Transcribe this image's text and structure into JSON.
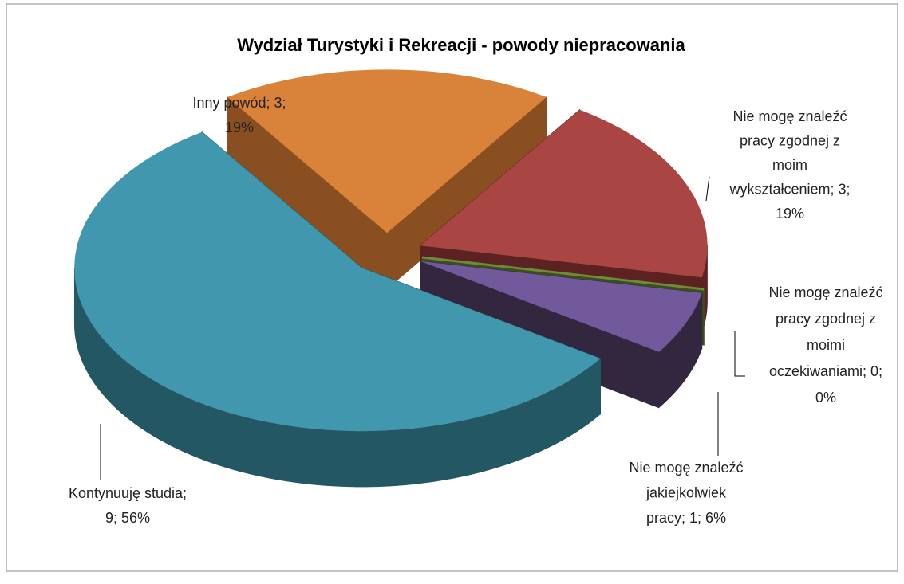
{
  "chart_data": {
    "type": "pie3d",
    "title": "Wydział Turystyki i Rekreacji - powody niepracowania",
    "values": [
      3,
      3,
      0,
      1,
      9
    ],
    "percentages": [
      19,
      19,
      0,
      6,
      56
    ],
    "labels": [
      [
        "Inny powód; 3;",
        "19%"
      ],
      [
        "Nie mogę znaleźć",
        "pracy zgodnej z",
        "moim",
        "wykształceniem; 3;",
        "19%"
      ],
      [
        "Nie mogę znaleźć",
        "pracy zgodnej z",
        "moimi",
        "oczekiwaniami; 0;",
        "0%"
      ],
      [
        "Nie mogę znaleźć",
        "jakiejkolwiek",
        "pracy; 1; 6%"
      ],
      [
        "Kontynuuję studia;",
        "9; 56%"
      ]
    ],
    "colors": [
      "#d9823a",
      "#a94543",
      "#6e8b3c",
      "#72599b",
      "#4197ae"
    ],
    "side_colors": [
      "#8a4f20",
      "#5c2221",
      "#3b4e1d",
      "#33263f",
      "#235763"
    ]
  }
}
